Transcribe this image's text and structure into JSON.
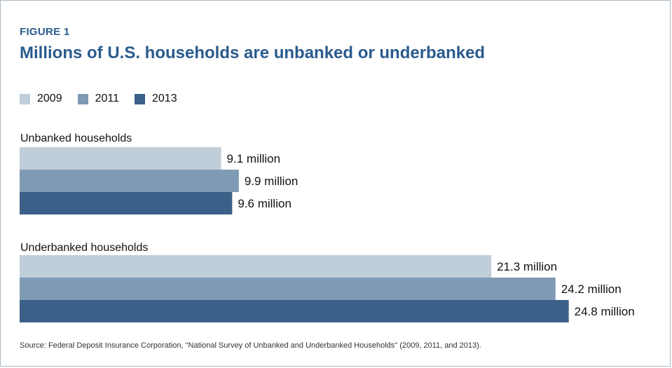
{
  "figure_label": "FIGURE 1",
  "source": "Source: Federal Deposit Insurance Corporation, \"National Survey of Unbanked and Underbanked Households\" (2009, 2011, and 2013).",
  "colors": {
    "title": "#2a5b8e",
    "frame_border": "#aab8c6"
  },
  "chart_data": {
    "type": "bar",
    "orientation": "horizontal",
    "title": "Millions of U.S. households are unbanked or underbanked",
    "unit_suffix": " million",
    "legend_placement": "top-left",
    "grid": false,
    "xlim": [
      0,
      25
    ],
    "categories": [
      "Unbanked households",
      "Underbanked households"
    ],
    "series": [
      {
        "name": "2009",
        "color": "#c0ceda",
        "values": [
          9.1,
          21.3
        ]
      },
      {
        "name": "2011",
        "color": "#7f9ab4",
        "values": [
          9.9,
          24.2
        ]
      },
      {
        "name": "2013",
        "color": "#3c6189",
        "values": [
          9.6,
          24.8
        ]
      }
    ]
  }
}
